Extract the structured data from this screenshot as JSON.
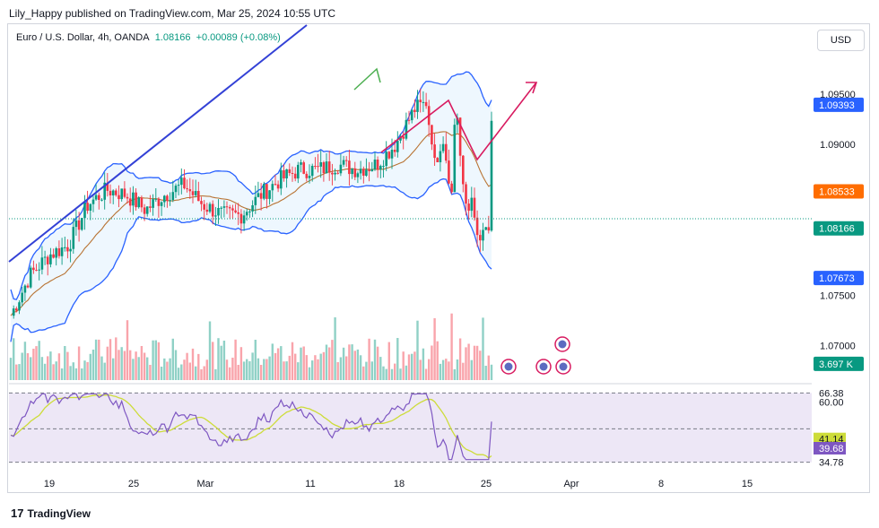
{
  "header": {
    "publisher": "Lily_Happy published on TradingView.com, Mar 25, 2024 10:55 UTC"
  },
  "symbol": {
    "name": "Euro / U.S. Dollar, 4h, OANDA",
    "price": "1.08166",
    "change": "+0.00089 (+0.08%)"
  },
  "currency_button": "USD",
  "footer": {
    "logo_text": "17",
    "brand": "TradingView"
  },
  "colors": {
    "up": "#089981",
    "down": "#f23645",
    "band_fill": "#e3f2fd",
    "band_line": "#2962ff",
    "trend_line": "#3341d6",
    "rsi_fill": "#ede7f6",
    "rsi_line": "#7e57c2",
    "rsi_ma": "#cddc39",
    "projection": "#d81b60",
    "basis": "#b87333"
  },
  "chart_data": [
    {
      "type": "candlestick",
      "timeframe": "4h",
      "ylim": [
        1.0665,
        1.099
      ],
      "x_ticks": [
        "19",
        "25",
        "Mar",
        "11",
        "18",
        "25",
        "Apr",
        "8",
        "15"
      ],
      "y_ticks": [
        "1.09500",
        "1.09000",
        "1.07500",
        "1.07000"
      ],
      "price_tags": [
        {
          "label": "1.09393",
          "value": 1.09393,
          "color": "#2962ff"
        },
        {
          "label": "1.08533",
          "value": 1.08533,
          "color": "#ff6d00"
        },
        {
          "label": "1.08166",
          "value": 1.08166,
          "color": "#089981"
        },
        {
          "label": "1.07673",
          "value": 1.07673,
          "color": "#2962ff"
        },
        {
          "label": "3.697 K",
          "value": 1.0682,
          "color": "#089981"
        }
      ],
      "indicators": [
        "Bollinger Bands (upper, basis, lower)",
        "Volume",
        "Trend line",
        "Projection arrow"
      ],
      "series": [
        {
          "name": "close",
          "path": [
            [
              0,
              1.073
            ],
            [
              0.04,
              1.077
            ],
            [
              0.08,
              1.079
            ],
            [
              0.12,
              1.08
            ],
            [
              0.16,
              1.084
            ],
            [
              0.2,
              1.0855
            ],
            [
              0.24,
              1.085
            ],
            [
              0.28,
              1.0835
            ],
            [
              0.32,
              1.085
            ],
            [
              0.36,
              1.086
            ],
            [
              0.4,
              1.084
            ],
            [
              0.44,
              1.083
            ],
            [
              0.48,
              1.083
            ],
            [
              0.52,
              1.085
            ],
            [
              0.56,
              1.0865
            ],
            [
              0.6,
              1.0875
            ],
            [
              0.64,
              1.0875
            ],
            [
              0.68,
              1.088
            ],
            [
              0.72,
              1.0875
            ],
            [
              0.76,
              1.088
            ],
            [
              0.8,
              1.09
            ],
            [
              0.84,
              1.0935
            ],
            [
              0.88,
              1.0945
            ],
            [
              0.92,
              1.096
            ],
            [
              0.96,
              1.095
            ],
            [
              1.0,
              1.0915
            ]
          ]
        }
      ]
    },
    {
      "type": "line",
      "name": "RSI",
      "ylim": [
        33,
        69
      ],
      "levels": [
        "66.38",
        "60.00",
        "41.14",
        "39.68",
        "34.78"
      ]
    }
  ]
}
